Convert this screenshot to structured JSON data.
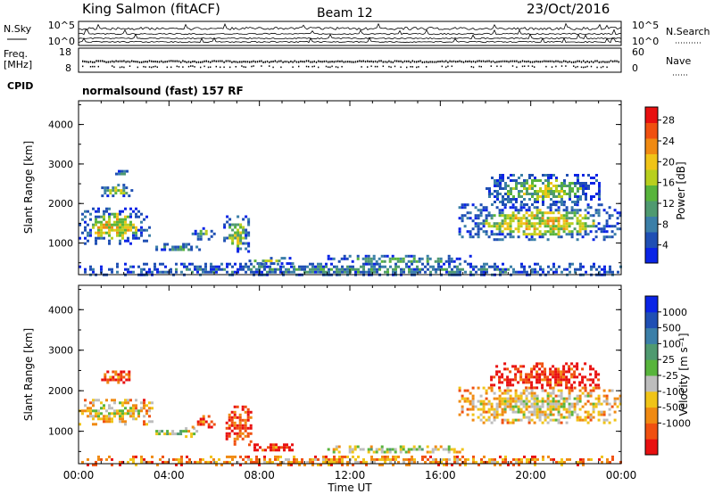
{
  "header": {
    "station": "King Salmon (fitACF)",
    "beam": "Beam 12",
    "date": "23/Oct/2016"
  },
  "params": {
    "nsky_label": "N.Sky",
    "nsky_ticks": [
      "10^5",
      "10^0"
    ],
    "nsearch_label": "N.Search",
    "nsearch_ticks": [
      "10^5",
      "10^0"
    ],
    "freq_label": "Freq.",
    "freq_unit": "[MHz]",
    "freq_ticks": [
      "18",
      "8"
    ],
    "nave_label": "Nave",
    "nave_ticks": [
      "60",
      "0"
    ],
    "cpid_label": "CPID",
    "cpid_value": "normalsound (fast) 157 RF"
  },
  "colors": {
    "power": [
      "#0a24e6",
      "#1f4fb4",
      "#3b7fa8",
      "#4f9a70",
      "#58b43c",
      "#b8cf1e",
      "#f0c418",
      "#f08a12",
      "#f05010",
      "#e81010"
    ],
    "velocity": [
      "#e81010",
      "#f05010",
      "#f08a12",
      "#f0c418",
      "#bdbdbd",
      "#58b43c",
      "#4f9a70",
      "#3b7fa8",
      "#1f4fb4",
      "#0a24e6"
    ]
  },
  "chart_data": [
    {
      "type": "heatmap",
      "name": "power",
      "xlabel": "",
      "ylabel": "Slant Range [km]",
      "xlim": [
        0,
        24
      ],
      "ylim": [
        200,
        4600
      ],
      "yticks": [
        "1000",
        "2000",
        "3000",
        "4000"
      ],
      "colorbar_label": "Power [dB]",
      "colorbar_ticks": [
        "4",
        "8",
        "12",
        "16",
        "20",
        "24",
        "28"
      ],
      "regions": [
        {
          "t0": 0.0,
          "t1": 3.1,
          "r0": 1000,
          "r1": 1900,
          "level": 0.62
        },
        {
          "t0": 1.0,
          "t1": 2.4,
          "r0": 2200,
          "r1": 2500,
          "level": 0.5
        },
        {
          "t0": 1.5,
          "t1": 2.1,
          "r0": 2700,
          "r1": 2850,
          "level": 0.4
        },
        {
          "t0": 3.4,
          "t1": 5.3,
          "r0": 800,
          "r1": 1000,
          "level": 0.35
        },
        {
          "t0": 5.0,
          "t1": 6.0,
          "r0": 1100,
          "r1": 1400,
          "level": 0.45
        },
        {
          "t0": 6.4,
          "t1": 7.5,
          "r0": 800,
          "r1": 1700,
          "level": 0.55
        },
        {
          "t0": 7.4,
          "t1": 9.5,
          "r0": 500,
          "r1": 650,
          "level": 0.5
        },
        {
          "t0": 11.0,
          "t1": 17.5,
          "r0": 500,
          "r1": 700,
          "level": 0.42
        },
        {
          "t0": 16.8,
          "t1": 24.0,
          "r0": 1100,
          "r1": 2000,
          "level": 0.6
        },
        {
          "t0": 18.0,
          "t1": 23.0,
          "r0": 2000,
          "r1": 2750,
          "level": 0.5
        },
        {
          "t0": 0.0,
          "t1": 24.0,
          "r0": 200,
          "r1": 500,
          "level": 0.3
        }
      ]
    },
    {
      "type": "heatmap",
      "name": "velocity",
      "xlabel": "Time UT",
      "ylabel": "Slant Range [km]",
      "xlim": [
        0,
        24
      ],
      "ylim": [
        200,
        4600
      ],
      "xticks": [
        "00:00",
        "04:00",
        "08:00",
        "12:00",
        "16:00",
        "20:00",
        "00:00"
      ],
      "yticks": [
        "1000",
        "2000",
        "3000",
        "4000"
      ],
      "colorbar_label": "Velocity [m s⁻¹]",
      "colorbar_ticks": [
        "1000",
        "500",
        "100",
        "25",
        "-25",
        "-100",
        "-500",
        "-1000"
      ],
      "regions": [
        {
          "t0": 0.0,
          "t1": 3.2,
          "r0": 1200,
          "r1": 1800,
          "level": 0.45
        },
        {
          "t0": 1.0,
          "t1": 2.3,
          "r0": 2200,
          "r1": 2500,
          "level": 0.25
        },
        {
          "t0": 3.4,
          "t1": 5.2,
          "r0": 900,
          "r1": 1100,
          "level": 0.55
        },
        {
          "t0": 5.0,
          "t1": 6.0,
          "r0": 1100,
          "r1": 1400,
          "level": 0.25
        },
        {
          "t0": 6.5,
          "t1": 7.6,
          "r0": 700,
          "r1": 1700,
          "level": 0.2
        },
        {
          "t0": 7.5,
          "t1": 9.5,
          "r0": 550,
          "r1": 700,
          "level": 0.22
        },
        {
          "t0": 11.0,
          "t1": 17.0,
          "r0": 500,
          "r1": 650,
          "level": 0.55
        },
        {
          "t0": 16.8,
          "t1": 24.0,
          "r0": 1200,
          "r1": 2100,
          "level": 0.45
        },
        {
          "t0": 18.2,
          "t1": 23.0,
          "r0": 2100,
          "r1": 2700,
          "level": 0.15
        },
        {
          "t0": 0.0,
          "t1": 24.0,
          "r0": 200,
          "r1": 400,
          "level": 0.35
        }
      ]
    }
  ]
}
